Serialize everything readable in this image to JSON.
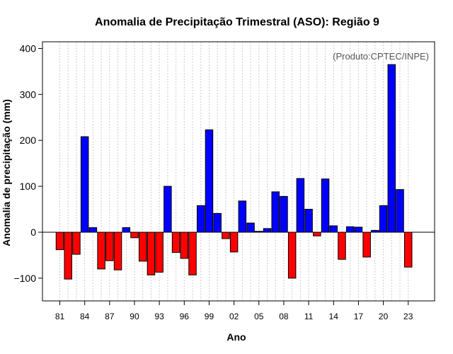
{
  "chart_data": {
    "type": "bar",
    "title": "Anomalia de Precipitação Trimestral (ASO): Região 9",
    "xlabel": "Ano",
    "ylabel": "Anomalia de precipitação (mm)",
    "credit": "(Produto:CPTEC/INPE)",
    "ylim": [
      -155,
      415
    ],
    "yticks": [
      -100,
      0,
      100,
      200,
      300,
      400
    ],
    "yticklabels": [
      "−100",
      "0",
      "100",
      "200",
      "300",
      "400"
    ],
    "grid": "vertical dotted",
    "colors": {
      "positive": "#0000ff",
      "negative": "#ff0000",
      "outline": "#000000",
      "grid": "#cccccc"
    },
    "categories": [
      "1981",
      "1982",
      "1983",
      "1984",
      "1985",
      "1986",
      "1987",
      "1988",
      "1989",
      "1990",
      "1991",
      "1992",
      "1993",
      "1994",
      "1995",
      "1996",
      "1997",
      "1998",
      "1999",
      "2000",
      "2001",
      "2002",
      "2003",
      "2004",
      "2005",
      "2006",
      "2007",
      "2008",
      "2009",
      "2010",
      "2011",
      "2012",
      "2013",
      "2014",
      "2015",
      "2016",
      "2017",
      "2018",
      "2019",
      "2020",
      "2021",
      "2022",
      "2023"
    ],
    "xticklabels": [
      {
        "category": "1981",
        "label": "81"
      },
      {
        "category": "1984",
        "label": "84"
      },
      {
        "category": "1987",
        "label": "87"
      },
      {
        "category": "1990",
        "label": "90"
      },
      {
        "category": "1993",
        "label": "93"
      },
      {
        "category": "1996",
        "label": "96"
      },
      {
        "category": "1999",
        "label": "99"
      },
      {
        "category": "2002",
        "label": "02"
      },
      {
        "category": "2005",
        "label": "05"
      },
      {
        "category": "2008",
        "label": "08"
      },
      {
        "category": "2011",
        "label": "11"
      },
      {
        "category": "2014",
        "label": "14"
      },
      {
        "category": "2017",
        "label": "17"
      },
      {
        "category": "2020",
        "label": "20"
      },
      {
        "category": "2023",
        "label": "23"
      }
    ],
    "values": [
      -38,
      -102,
      -48,
      208,
      10,
      -80,
      -62,
      -82,
      10,
      -12,
      -63,
      -93,
      -87,
      100,
      -44,
      -57,
      -93,
      58,
      223,
      41,
      -14,
      -43,
      68,
      20,
      2,
      8,
      88,
      78,
      -100,
      117,
      50,
      -8,
      116,
      14,
      -59,
      12,
      11,
      -54,
      4,
      58,
      365,
      93,
      -76
    ]
  }
}
